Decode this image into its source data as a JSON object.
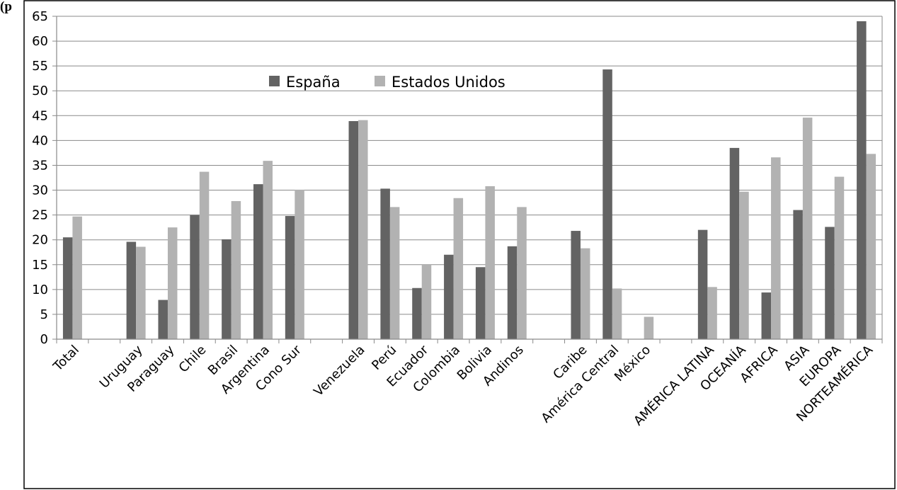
{
  "header_text": "(p",
  "chart_data": {
    "type": "bar",
    "categories": [
      "Total",
      "",
      "Uruguay",
      "Paraguay",
      "Chile",
      "Brasil",
      "Argentina",
      "Cono Sur",
      "",
      "Venezuela",
      "Perú",
      "Ecuador",
      "Colombia",
      "Bolivia",
      "Andinos",
      "",
      "Caribe",
      "América Central",
      "México",
      "",
      "AMÉRICA LATINA",
      "OCEANÍA",
      "AFRICA",
      "ASIA",
      "EUROPA",
      "NORTEAMÉRICA"
    ],
    "series": [
      {
        "name": "España",
        "color": "#636363",
        "values": [
          20.5,
          null,
          19.6,
          7.9,
          25.0,
          20.1,
          31.2,
          24.8,
          null,
          43.9,
          30.3,
          10.3,
          17.0,
          14.5,
          18.7,
          null,
          21.8,
          54.3,
          null,
          null,
          22.0,
          38.5,
          9.4,
          26.0,
          22.6,
          64.0
        ]
      },
      {
        "name": "Estados Unidos",
        "color": "#b2b2b2",
        "values": [
          24.7,
          null,
          18.6,
          22.5,
          33.7,
          27.8,
          35.9,
          30.1,
          null,
          44.1,
          26.6,
          15.0,
          28.4,
          30.8,
          26.6,
          null,
          18.3,
          10.2,
          4.5,
          null,
          10.5,
          29.7,
          36.6,
          44.6,
          32.7,
          37.3
        ]
      }
    ],
    "ylim": [
      0,
      65
    ],
    "yticks": [
      0,
      5,
      10,
      15,
      20,
      25,
      30,
      35,
      40,
      45,
      50,
      55,
      60,
      65
    ],
    "grid": true,
    "legend_position": "top-center"
  }
}
